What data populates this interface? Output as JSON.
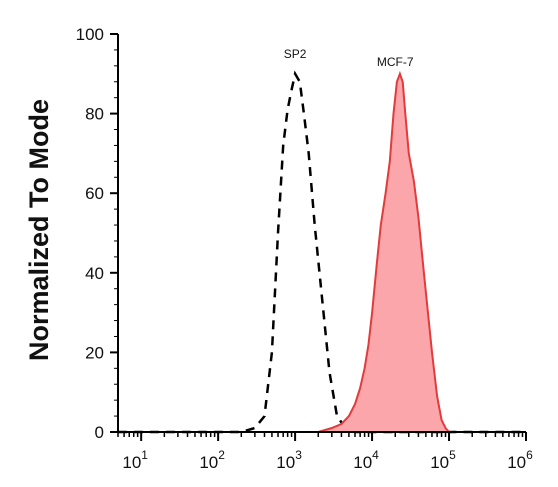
{
  "chart_data": {
    "type": "area",
    "title": "",
    "xlabel": "",
    "ylabel": "Normalized To Mode",
    "x_scale": "log",
    "xlim": [
      5,
      1000000
    ],
    "ylim": [
      0,
      100
    ],
    "x_ticks": [
      {
        "base": "10",
        "exp": "1"
      },
      {
        "base": "10",
        "exp": "2"
      },
      {
        "base": "10",
        "exp": "3"
      },
      {
        "base": "10",
        "exp": "4"
      },
      {
        "base": "10",
        "exp": "5"
      },
      {
        "base": "10",
        "exp": "6"
      }
    ],
    "y_ticks": [
      "0",
      "20",
      "40",
      "60",
      "80",
      "100"
    ],
    "grid": false,
    "colors": {
      "mcf7_fill": "#fba6ab",
      "mcf7_line": "#e23b3b",
      "sp2_line": "#000000"
    },
    "series": [
      {
        "name": "SP2",
        "style": "dashed",
        "label_at": [
          1000,
          92
        ],
        "x": [
          5,
          200,
          300,
          400,
          500,
          600,
          700,
          800,
          900,
          1000,
          1150,
          1300,
          1500,
          1800,
          2200,
          2800,
          3500,
          4500,
          6000,
          1000000
        ],
        "y": [
          0,
          0,
          1,
          4,
          20,
          50,
          72,
          81,
          86,
          90,
          88,
          80,
          70,
          52,
          35,
          15,
          4,
          1,
          0,
          0
        ]
      },
      {
        "name": "MCF-7",
        "style": "filled",
        "label_at": [
          20000,
          90
        ],
        "x": [
          5,
          2000,
          3000,
          4000,
          5000,
          6000,
          7000,
          8000,
          9000,
          10000,
          11500,
          13000,
          15000,
          17000,
          19000,
          21000,
          23000,
          25000,
          27000,
          30000,
          35000,
          40000,
          45000,
          50000,
          60000,
          70000,
          80000,
          90000,
          100000,
          1000000
        ],
        "y": [
          0,
          0,
          1,
          2,
          4,
          7,
          11,
          16,
          22,
          30,
          42,
          52,
          60,
          68,
          80,
          88,
          90,
          88,
          80,
          70,
          63,
          54,
          44,
          35,
          20,
          9,
          3,
          1,
          0,
          0
        ]
      }
    ]
  }
}
